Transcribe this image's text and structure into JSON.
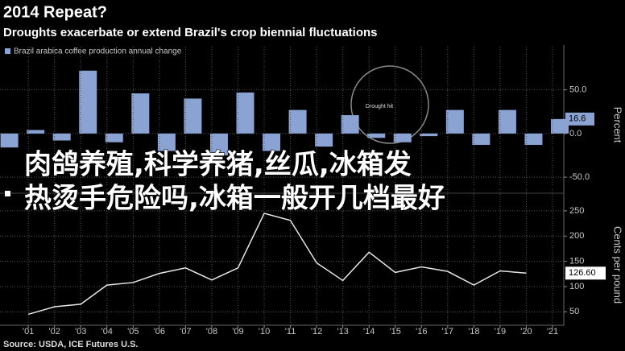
{
  "header": {
    "title": "2014 Repeat?",
    "subtitle": "Droughts exacerbate or extend Brazil's crop biennial fluctuations"
  },
  "source": "Source: USDA, ICE Futures U.S.",
  "overlay_text": [
    "肉鸽养殖,科学养猪,丝瓜,冰箱发",
    "热烫手危险吗,冰箱一般开几档最好"
  ],
  "chart_data": [
    {
      "type": "bar",
      "legend": "Brazil arabica coffee production annual change",
      "y_label": "Percent",
      "annotation": "Drought hit",
      "color": "#8aa3d3",
      "x": [
        2000,
        2001,
        2002,
        2003,
        2004,
        2005,
        2006,
        2007,
        2008,
        2009,
        2010,
        2011,
        2012,
        2013,
        2014,
        2015,
        2016,
        2017,
        2018,
        2019,
        2020,
        2021
      ],
      "values": [
        -16,
        4,
        -8,
        72,
        -10,
        46,
        -20,
        40,
        -25,
        47,
        -20,
        27,
        -15,
        21,
        -5,
        -10,
        -3,
        27,
        -13,
        27,
        -13,
        16.6
      ],
      "last_value_label": "16.6",
      "xlim": [
        1999.92,
        2021.43
      ],
      "ylim": [
        -61,
        81
      ],
      "yticks": [
        {
          "value": 50,
          "label": "50.0"
        },
        {
          "value": 0,
          "label": "0.0"
        },
        {
          "value": -50,
          "label": "-50.0"
        }
      ],
      "grid": true
    },
    {
      "type": "line",
      "y_label": "Cents per pound",
      "color": "#e6e6e6",
      "x": [
        2001,
        2002,
        2003,
        2004,
        2005,
        2006,
        2007,
        2008,
        2009,
        2010,
        2011,
        2012,
        2013,
        2014,
        2015,
        2016,
        2017,
        2018,
        2019,
        2020
      ],
      "values": [
        45,
        60,
        65,
        103,
        108,
        126,
        137,
        113,
        137,
        245,
        231,
        147,
        112,
        168,
        128,
        139,
        130,
        103,
        131,
        126.6
      ],
      "last_value_label": "126.60",
      "xlim": [
        1999.92,
        2021.43
      ],
      "ylim": [
        25,
        261
      ],
      "yticks": [
        250,
        200,
        150,
        100,
        50
      ],
      "xticks": [
        {
          "value": 2001,
          "label": "'01"
        },
        {
          "value": 2002,
          "label": "'02"
        },
        {
          "value": 2003,
          "label": "'03"
        },
        {
          "value": 2004,
          "label": "'04"
        },
        {
          "value": 2005,
          "label": "'05"
        },
        {
          "value": 2006,
          "label": "'06"
        },
        {
          "value": 2007,
          "label": "'07"
        },
        {
          "value": 2008,
          "label": "'08"
        },
        {
          "value": 2009,
          "label": "'09"
        },
        {
          "value": 2010,
          "label": "'10"
        },
        {
          "value": 2011,
          "label": "'11"
        },
        {
          "value": 2012,
          "label": "'12"
        },
        {
          "value": 2013,
          "label": "'13"
        },
        {
          "value": 2014,
          "label": "'14"
        },
        {
          "value": 2015,
          "label": "'15"
        },
        {
          "value": 2016,
          "label": "'16"
        },
        {
          "value": 2017,
          "label": "'17"
        },
        {
          "value": 2018,
          "label": "'18"
        },
        {
          "value": 2019,
          "label": "'19"
        },
        {
          "value": 2020,
          "label": "'20"
        },
        {
          "value": 2021,
          "label": "'21"
        }
      ],
      "grid": true
    }
  ]
}
